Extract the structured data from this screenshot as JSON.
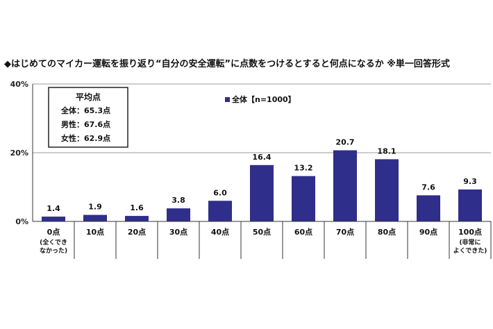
{
  "chart_data": {
    "type": "bar",
    "title": "◆はじめてのマイカー運転を振り返り“自分の安全運転”に点数をつけるとすると何点になるか ※単一回答形式",
    "categories": [
      "0点",
      "10点",
      "20点",
      "30点",
      "40点",
      "50点",
      "60点",
      "70点",
      "80点",
      "90点",
      "100点"
    ],
    "category_notes": [
      [
        "(全くでき",
        "なかった)"
      ],
      [],
      [],
      [],
      [],
      [],
      [],
      [],
      [],
      [],
      [
        "(非常に",
        "よくできた)"
      ]
    ],
    "series": [
      {
        "name": "全体【n=1000】",
        "values": [
          1.4,
          1.9,
          1.6,
          3.8,
          6.0,
          16.4,
          13.2,
          20.7,
          18.1,
          7.6,
          9.3
        ],
        "value_labels": [
          "1.4",
          "1.9",
          "1.6",
          "3.8",
          "6.0",
          "16.4",
          "13.2",
          "20.7",
          "18.1",
          "7.6",
          "9.3"
        ]
      }
    ],
    "ylim": [
      0,
      40
    ],
    "yticks": [
      0,
      20,
      40
    ],
    "ytick_labels": [
      "0%",
      "20%",
      "40%"
    ],
    "grid": true,
    "legend_position": "top",
    "bar_color": "#2f2e8b",
    "average_box": {
      "title": "平均点",
      "rows": [
        "全体：65.3点",
        "男性：67.6点",
        "女性：62.9点"
      ]
    }
  }
}
